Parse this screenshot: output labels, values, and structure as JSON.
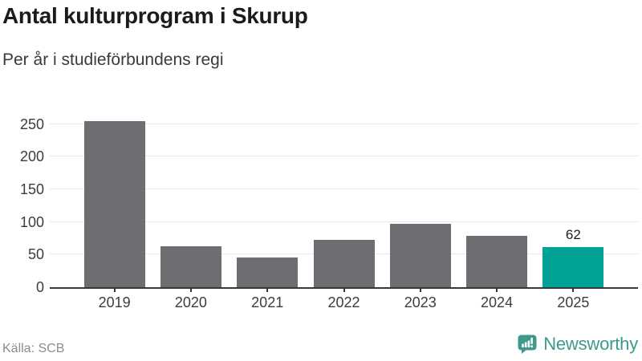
{
  "header": {
    "title": "Antal kulturprogram i Skurup",
    "subtitle": "Per år i studieförbundens regi"
  },
  "chart_data": {
    "type": "bar",
    "title": "Antal kulturprogram i Skurup",
    "subtitle": "Per år i studieförbundens regi",
    "categories": [
      "2019",
      "2020",
      "2021",
      "2022",
      "2023",
      "2024",
      "2025"
    ],
    "values": [
      254,
      63,
      46,
      72,
      97,
      79,
      62
    ],
    "highlight_index": 6,
    "highlight_label": "62",
    "xlabel": "",
    "ylabel": "",
    "yticks": [
      0,
      50,
      100,
      150,
      200,
      250
    ],
    "ylim": [
      0,
      268
    ],
    "grid": true,
    "legend": "none",
    "bar_color": "#6f6d72",
    "highlight_color": "#00a396"
  },
  "footer": {
    "source": "Källa: SCB",
    "brand": "Newsworthy"
  },
  "colors": {
    "title": "#1b1b1b",
    "subtitle": "#3a3a3a",
    "axis": "#383838",
    "grid": "#e7e7e7",
    "bar": "#6f6d72",
    "highlight": "#00a396",
    "brand_teal": "#3d998c",
    "source_gray": "#8c8c8c"
  },
  "icons": {
    "brand_icon": "newsworthy-speech-bubble-bar-chart-icon"
  }
}
